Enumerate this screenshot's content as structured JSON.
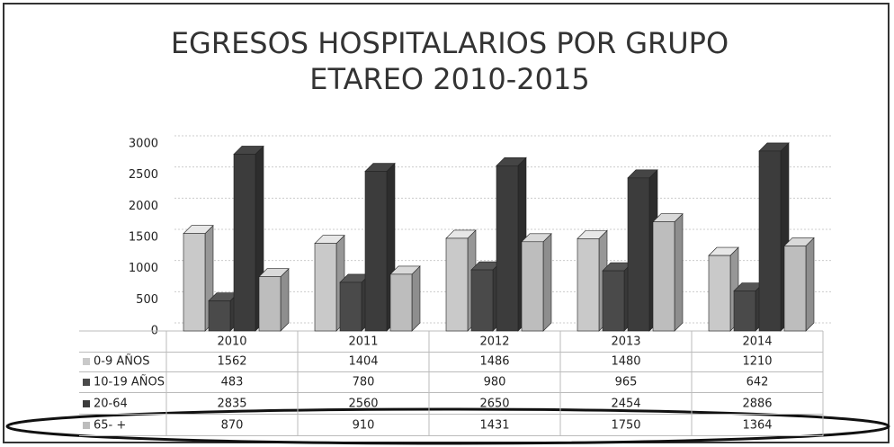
{
  "chart_data": {
    "type": "bar3d",
    "title": "EGRESOS HOSPITALARIOS POR GRUPO ETAREO 2010-2015",
    "categories": [
      "2010",
      "2011",
      "2012",
      "2013",
      "2014"
    ],
    "series": [
      {
        "name": "0-9 AÑOS",
        "color": "#c9c9c9",
        "values": [
          1562,
          1404,
          1486,
          1480,
          1210
        ]
      },
      {
        "name": "10-19 AÑOS",
        "color": "#4a4a4a",
        "values": [
          483,
          780,
          980,
          965,
          642
        ]
      },
      {
        "name": "20-64",
        "color": "#3c3c3c",
        "values": [
          2835,
          2560,
          2650,
          2454,
          2886
        ]
      },
      {
        "name": "65- +",
        "color": "#bdbdbd",
        "values": [
          870,
          910,
          1431,
          1750,
          1364
        ]
      }
    ],
    "ylim": [
      0,
      3000
    ],
    "yticks": [
      0,
      500,
      1000,
      1500,
      2000,
      2500,
      3000
    ],
    "grid": true
  }
}
